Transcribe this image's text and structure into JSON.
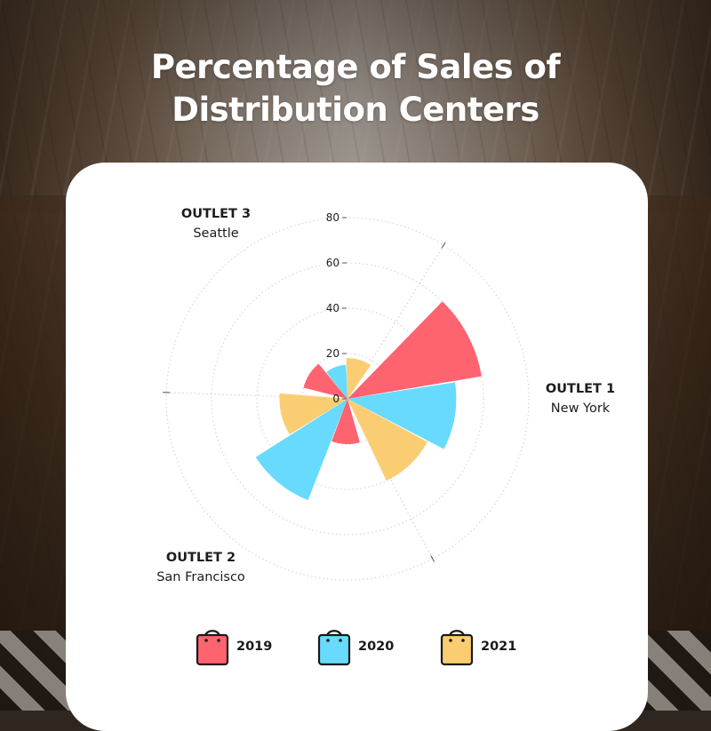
{
  "title": {
    "line1": "Percentage of Sales of",
    "line2": "Distribution Centers"
  },
  "outlets": [
    {
      "name": "OUTLET 1",
      "city": "New York"
    },
    {
      "name": "OUTLET 2",
      "city": "San Francisco"
    },
    {
      "name": "OUTLET 3",
      "city": "Seattle"
    }
  ],
  "colors": {
    "2019": "#fe6370",
    "2020": "#68dafe",
    "2021": "#fbcd73"
  },
  "legend_icon": "shopping-bag-icon",
  "chart_data": {
    "type": "polar-bar",
    "title": "Percentage of Sales of Distribution Centers",
    "radial_ticks": [
      0,
      20,
      40,
      60,
      80
    ],
    "rlim": [
      0,
      80
    ],
    "grid": true,
    "legend_position": "bottom",
    "categories": [
      "OUTLET 1",
      "OUTLET 2",
      "OUTLET 3"
    ],
    "series": [
      {
        "name": "2019",
        "values": [
          60,
          20,
          20
        ]
      },
      {
        "name": "2020",
        "values": [
          48,
          48,
          15
        ]
      },
      {
        "name": "2021",
        "values": [
          40,
          30,
          18
        ]
      }
    ]
  }
}
